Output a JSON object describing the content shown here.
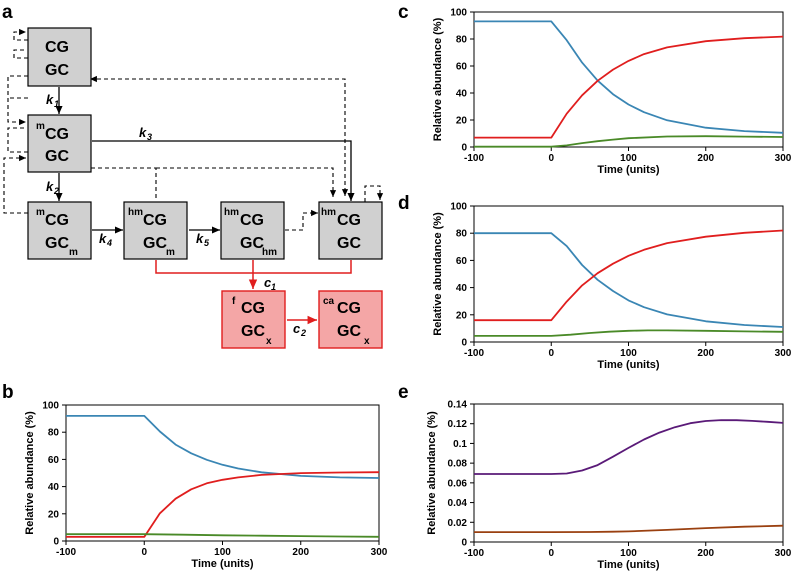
{
  "panel_labels": {
    "a": "a",
    "b": "b",
    "c": "c",
    "d": "d",
    "e": "e"
  },
  "colors": {
    "blue": "#3a86b4",
    "red": "#e01e1e",
    "green": "#4a8a28",
    "purple": "#5a1a78",
    "brown": "#9a4010",
    "box_gray": "#d0d0d0",
    "box_pink": "#f4a6a6",
    "box_red_border": "#e01e1e"
  },
  "diagram": {
    "boxes": [
      {
        "id": "CG_GC",
        "sup": "",
        "top": "CG",
        "bottom": "GC",
        "sub": ""
      },
      {
        "id": "mCG_GC",
        "sup": "m",
        "top": "CG",
        "bottom": "GC",
        "sub": ""
      },
      {
        "id": "mCG_GCm",
        "sup": "m",
        "top": "CG",
        "bottom": "GC",
        "sub": "m"
      },
      {
        "id": "hmCG_GCm",
        "sup": "hm",
        "top": "CG",
        "bottom": "GC",
        "sub": "m"
      },
      {
        "id": "hmCG_GChm",
        "sup": "hm",
        "top": "CG",
        "bottom": "GC",
        "sub": "hm"
      },
      {
        "id": "hmCG_GC",
        "sup": "hm",
        "top": "CG",
        "bottom": "GC",
        "sub": ""
      },
      {
        "id": "fCG_GCx",
        "sup": "f",
        "top": "CG",
        "bottom": "GC",
        "sub": "x"
      },
      {
        "id": "caCG_GCx",
        "sup": "ca",
        "top": "CG",
        "bottom": "GC",
        "sub": "x"
      }
    ],
    "rates": [
      {
        "letter": "k",
        "sub": "1"
      },
      {
        "letter": "k",
        "sub": "3"
      },
      {
        "letter": "k",
        "sub": "2"
      },
      {
        "letter": "k",
        "sub": "4"
      },
      {
        "letter": "k",
        "sub": "5"
      },
      {
        "letter": "c",
        "sub": "1"
      },
      {
        "letter": "c",
        "sub": "2"
      }
    ]
  },
  "chart_data": [
    {
      "panel": "b",
      "type": "line",
      "xlabel": "Time (units)",
      "ylabel": "Relative abundance (%)",
      "xlim": [
        -100,
        300
      ],
      "ylim": [
        0,
        100
      ],
      "xticks": [
        "-100",
        "0",
        "100",
        "200",
        "300"
      ],
      "yticks": [
        "0",
        "20",
        "40",
        "60",
        "80",
        "100"
      ],
      "series": [
        {
          "name": "blue",
          "color": "#3a86b4",
          "x": [
            -100,
            0,
            20,
            40,
            60,
            80,
            100,
            120,
            150,
            200,
            250,
            300
          ],
          "y": [
            92,
            92,
            80.5,
            70.9,
            64.5,
            59.7,
            56.0,
            53.3,
            50.5,
            47.9,
            46.8,
            46.3
          ]
        },
        {
          "name": "red",
          "color": "#e01e1e",
          "x": [
            -100,
            0,
            20,
            40,
            60,
            80,
            100,
            120,
            150,
            200,
            250,
            300
          ],
          "y": [
            3,
            3,
            20.4,
            31.1,
            38.0,
            42.4,
            45.0,
            46.8,
            48.6,
            49.9,
            50.4,
            50.6
          ]
        },
        {
          "name": "green",
          "color": "#4a8a28",
          "x": [
            -100,
            0,
            50,
            100,
            150,
            200,
            250,
            300
          ],
          "y": [
            5,
            5,
            4.6,
            4.2,
            3.9,
            3.6,
            3.3,
            3.1
          ]
        }
      ]
    },
    {
      "panel": "c",
      "type": "line",
      "xlabel": "Time (units)",
      "ylabel": "Relative abundance (%)",
      "xlim": [
        -100,
        300
      ],
      "ylim": [
        0,
        100
      ],
      "xticks": [
        "-100",
        "0",
        "100",
        "200",
        "300"
      ],
      "yticks": [
        "0",
        "20",
        "40",
        "60",
        "80",
        "100"
      ],
      "series": [
        {
          "name": "blue",
          "color": "#3a86b4",
          "x": [
            -100,
            0,
            20,
            40,
            60,
            80,
            100,
            120,
            150,
            200,
            250,
            300
          ],
          "y": [
            93,
            93,
            79.1,
            62.5,
            49.2,
            39.1,
            31.5,
            25.8,
            19.8,
            14.3,
            11.8,
            10.5
          ]
        },
        {
          "name": "red",
          "color": "#e01e1e",
          "x": [
            -100,
            0,
            20,
            40,
            60,
            80,
            100,
            120,
            150,
            200,
            250,
            300
          ],
          "y": [
            7,
            7,
            24.7,
            38.3,
            49.0,
            57.3,
            63.8,
            68.8,
            73.8,
            78.4,
            80.6,
            81.8
          ]
        },
        {
          "name": "green",
          "color": "#4a8a28",
          "x": [
            -100,
            0,
            20,
            40,
            60,
            80,
            100,
            150,
            200,
            250,
            300
          ],
          "y": [
            0.2,
            0.2,
            1.2,
            2.9,
            4.3,
            5.5,
            6.5,
            7.8,
            8.0,
            7.7,
            7.4
          ]
        }
      ]
    },
    {
      "panel": "d",
      "type": "line",
      "xlabel": "Time (units)",
      "ylabel": "Relative abundance (%)",
      "xlim": [
        -100,
        300
      ],
      "ylim": [
        0,
        100
      ],
      "xticks": [
        "-100",
        "0",
        "100",
        "200",
        "300"
      ],
      "yticks": [
        "0",
        "20",
        "40",
        "60",
        "80",
        "100"
      ],
      "series": [
        {
          "name": "blue",
          "color": "#3a86b4",
          "x": [
            -100,
            0,
            20,
            40,
            60,
            80,
            100,
            120,
            150,
            200,
            250,
            300
          ],
          "y": [
            80,
            80,
            70.5,
            56.6,
            45.7,
            37.5,
            30.6,
            25.6,
            20.3,
            15.2,
            12.5,
            11.0
          ]
        },
        {
          "name": "red",
          "color": "#e01e1e",
          "x": [
            -100,
            0,
            20,
            40,
            60,
            80,
            100,
            120,
            150,
            200,
            250,
            300
          ],
          "y": [
            16,
            16,
            29.7,
            41.6,
            50.6,
            57.6,
            63.4,
            67.8,
            72.7,
            77.4,
            80.3,
            82.0
          ]
        },
        {
          "name": "green",
          "color": "#4a8a28",
          "x": [
            -100,
            0,
            25,
            50,
            75,
            100,
            125,
            150,
            200,
            250,
            300
          ],
          "y": [
            4.5,
            4.5,
            5.4,
            6.6,
            7.6,
            8.2,
            8.5,
            8.5,
            8.2,
            7.8,
            7.5
          ]
        }
      ]
    },
    {
      "panel": "e",
      "type": "line",
      "xlabel": "Time (units)",
      "ylabel": "Relative abundance (%)",
      "xlim": [
        -100,
        300
      ],
      "ylim": [
        0,
        0.14
      ],
      "xticks": [
        "-100",
        "0",
        "100",
        "200",
        "300"
      ],
      "yticks": [
        "0",
        "0.02",
        "0.04",
        "0.06",
        "0.08",
        "0.1",
        "0.12",
        "0.14"
      ],
      "series": [
        {
          "name": "purple",
          "color": "#5a1a78",
          "x": [
            -100,
            0,
            20,
            40,
            60,
            80,
            100,
            120,
            140,
            160,
            180,
            200,
            220,
            240,
            260,
            280,
            300
          ],
          "y": [
            0.069,
            0.069,
            0.0695,
            0.0725,
            0.078,
            0.0865,
            0.0955,
            0.104,
            0.111,
            0.1165,
            0.1205,
            0.1228,
            0.1237,
            0.1236,
            0.1229,
            0.1219,
            0.1208
          ]
        },
        {
          "name": "brown",
          "color": "#9a4010",
          "x": [
            -100,
            0,
            50,
            80,
            100,
            150,
            200,
            250,
            300
          ],
          "y": [
            0.01,
            0.01,
            0.0101,
            0.0104,
            0.0108,
            0.0123,
            0.0141,
            0.0155,
            0.0165
          ]
        }
      ]
    }
  ]
}
